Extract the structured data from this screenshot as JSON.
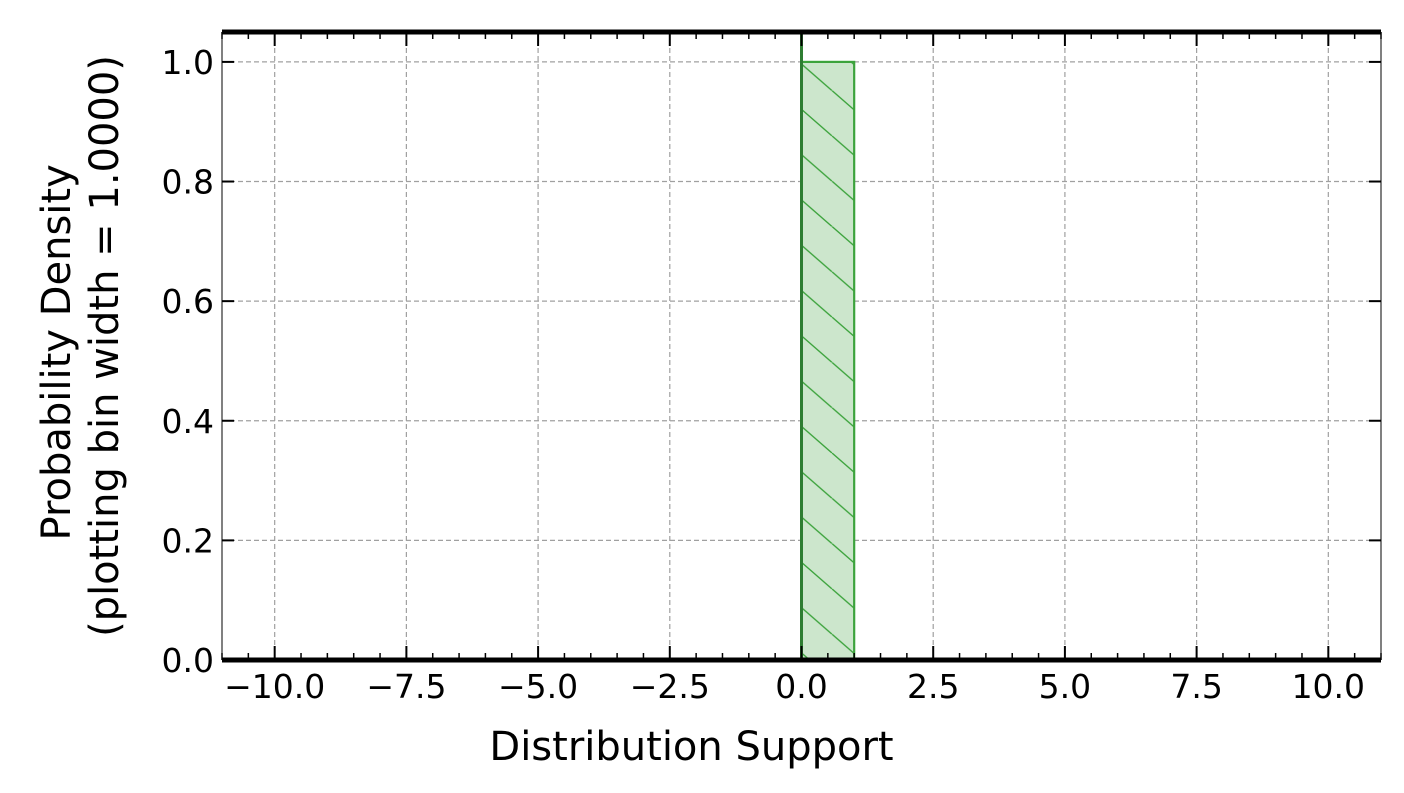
{
  "chart_data": {
    "type": "bar",
    "title": "",
    "xlabel": "Distribution Support",
    "ylabel_line1": "Probability Density",
    "ylabel_line2": "(plotting bin width = 1.0000)",
    "xlim": [
      -11.0,
      11.0
    ],
    "ylim": [
      0.0,
      1.05
    ],
    "xticks": [
      -10.0,
      -7.5,
      -5.0,
      -2.5,
      0.0,
      2.5,
      5.0,
      7.5,
      10.0
    ],
    "xtick_labels": [
      "−10.0",
      "−7.5",
      "−5.0",
      "−2.5",
      "0.0",
      "2.5",
      "5.0",
      "7.5",
      "10.0"
    ],
    "yticks": [
      0.0,
      0.2,
      0.4,
      0.6,
      0.8,
      1.0
    ],
    "ytick_labels": [
      "0.0",
      "0.2",
      "0.4",
      "0.6",
      "0.8",
      "1.0"
    ],
    "grid": true,
    "bins": [
      {
        "left": 0.0,
        "right": 1.0,
        "density": 1.0
      }
    ],
    "vertical_line_x": 0.0,
    "colors": {
      "bar_fill": "#cce6cc",
      "bar_edge": "#3ca33c",
      "hatch": "#3ca33c",
      "vline": "#2e7d32",
      "axis": "#000000",
      "grid": "#a0a0a0"
    }
  }
}
